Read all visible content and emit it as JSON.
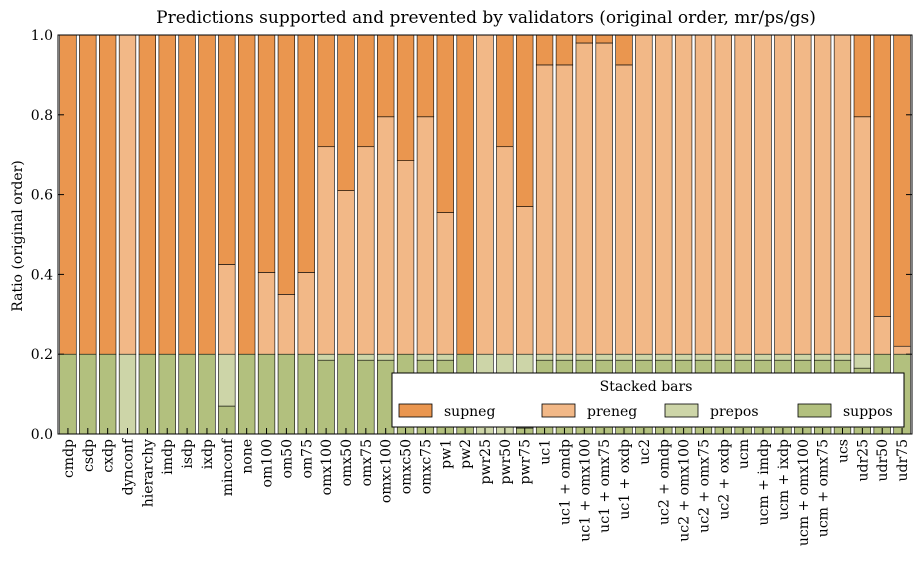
{
  "chart_data": {
    "type": "bar",
    "stacked": true,
    "title": "Predictions supported and prevented by validators (original order, mr/ps/gs)",
    "xlabel": "",
    "ylabel": "Ratio (original order)",
    "ylim": [
      0,
      1.0
    ],
    "yticks": [
      "0.0",
      "0.2",
      "0.4",
      "0.6",
      "0.8",
      "1.0"
    ],
    "grid": false,
    "legend": {
      "title": "Stacked bars",
      "placement": "bottom-right"
    },
    "categories": [
      "cmdp",
      "csdp",
      "cxdp",
      "dynconf",
      "hierarchy",
      "imdp",
      "isdp",
      "ixdp",
      "minconf",
      "none",
      "om100",
      "om50",
      "om75",
      "omx100",
      "omx50",
      "omx75",
      "omxc100",
      "omxc50",
      "omxc75",
      "pw1",
      "pw2",
      "pwr25",
      "pwr50",
      "pwr75",
      "uc1",
      "uc1 + omdp",
      "uc1 + omx100",
      "uc1 + omx75",
      "uc1 + oxdp",
      "uc2",
      "uc2 + omdp",
      "uc2 + omx100",
      "uc2 + omx75",
      "uc2 + oxdp",
      "ucm",
      "ucm + imdp",
      "ucm + ixdp",
      "ucm + omx100",
      "ucm + omx75",
      "ucs",
      "udr25",
      "udr50",
      "udr75"
    ],
    "series": [
      {
        "name": "suppos",
        "color": "#b2c07e",
        "values": [
          0.2,
          0.2,
          0.2,
          0.0,
          0.2,
          0.2,
          0.2,
          0.2,
          0.07,
          0.2,
          0.2,
          0.2,
          0.2,
          0.185,
          0.2,
          0.185,
          0.185,
          0.2,
          0.185,
          0.185,
          0.2,
          0.0,
          0.0,
          0.015,
          0.185,
          0.185,
          0.185,
          0.185,
          0.185,
          0.185,
          0.185,
          0.185,
          0.185,
          0.185,
          0.185,
          0.185,
          0.185,
          0.185,
          0.185,
          0.185,
          0.165,
          0.2,
          0.2
        ]
      },
      {
        "name": "prepos",
        "color": "#cdd5a8",
        "values": [
          0.0,
          0.0,
          0.0,
          0.2,
          0.0,
          0.0,
          0.0,
          0.0,
          0.13,
          0.0,
          0.0,
          0.0,
          0.0,
          0.015,
          0.0,
          0.015,
          0.015,
          0.0,
          0.015,
          0.015,
          0.0,
          0.2,
          0.2,
          0.185,
          0.015,
          0.015,
          0.015,
          0.015,
          0.015,
          0.015,
          0.015,
          0.015,
          0.015,
          0.015,
          0.015,
          0.015,
          0.015,
          0.015,
          0.015,
          0.015,
          0.035,
          0.0,
          0.0
        ]
      },
      {
        "name": "preneg",
        "color": "#f2b887",
        "values": [
          0.0,
          0.0,
          0.0,
          0.8,
          0.0,
          0.0,
          0.0,
          0.0,
          0.225,
          0.0,
          0.205,
          0.15,
          0.205,
          0.52,
          0.41,
          0.52,
          0.595,
          0.485,
          0.595,
          0.355,
          0.0,
          0.8,
          0.52,
          0.37,
          0.725,
          0.725,
          0.78,
          0.78,
          0.725,
          0.8,
          0.8,
          0.8,
          0.8,
          0.8,
          0.8,
          0.8,
          0.8,
          0.8,
          0.8,
          0.8,
          0.595,
          0.095,
          0.02
        ]
      },
      {
        "name": "supneg",
        "color": "#ea964f",
        "values": [
          0.8,
          0.8,
          0.8,
          0.0,
          0.8,
          0.8,
          0.8,
          0.8,
          0.575,
          0.8,
          0.595,
          0.65,
          0.595,
          0.28,
          0.39,
          0.28,
          0.205,
          0.315,
          0.205,
          0.445,
          0.8,
          0.0,
          0.28,
          0.43,
          0.075,
          0.075,
          0.02,
          0.02,
          0.075,
          0.0,
          0.0,
          0.0,
          0.0,
          0.0,
          0.0,
          0.0,
          0.0,
          0.0,
          0.0,
          0.0,
          0.205,
          0.705,
          0.78
        ]
      }
    ],
    "legend_order": [
      "supneg",
      "preneg",
      "prepos",
      "suppos"
    ]
  }
}
